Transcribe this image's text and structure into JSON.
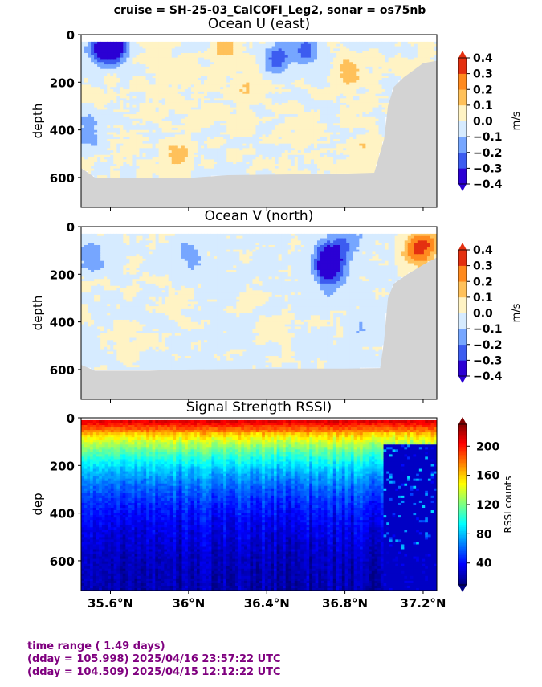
{
  "figure_title": "cruise = SH-25-03_CalCOFI_Leg2,  sonar = os75nb",
  "footer": {
    "line1": "time range ( 1.49 days)",
    "line2": "(dday = 105.998) 2025/04/16 23:57:22 UTC",
    "line3": "(dday = 104.509) 2025/04/15 12:12:22 UTC"
  },
  "colors": {
    "bottom_mask": "#d3d3d3",
    "footer_text": "#7f007f"
  },
  "chart_data": [
    {
      "type": "heatmap",
      "title": "Ocean U (east)",
      "xlabel": "",
      "ylabel": "depth",
      "xlim": [
        35.45,
        37.27
      ],
      "ylim": [
        725,
        0
      ],
      "yticks": [
        0,
        200,
        400,
        600
      ],
      "xticks": [
        35.6,
        36.0,
        36.4,
        36.8,
        37.2
      ],
      "xtick_labels": [],
      "data_depth_range": [
        30,
        600
      ],
      "colorbar": {
        "label": "m/s",
        "levels": [
          -0.4,
          -0.3,
          -0.2,
          -0.1,
          0.0,
          0.1,
          0.2,
          0.3,
          0.4
        ],
        "tick_labels": [
          "−0.4",
          "−0.3",
          "−0.2",
          "−0.1",
          "0.0",
          "0.1",
          "0.2",
          "0.3",
          "0.4"
        ],
        "colors": [
          "#2b00d4",
          "#3c5cf0",
          "#76a6ff",
          "#d6ebff",
          "#fff3c4",
          "#ffc15a",
          "#ff8a1e",
          "#e43010"
        ],
        "extend": "both"
      },
      "bottom_depth": [
        [
          35.45,
          560
        ],
        [
          35.52,
          600
        ],
        [
          35.6,
          602
        ],
        [
          35.8,
          602
        ],
        [
          36.0,
          602
        ],
        [
          36.2,
          590
        ],
        [
          36.4,
          588
        ],
        [
          36.6,
          586
        ],
        [
          36.8,
          584
        ],
        [
          36.95,
          580
        ],
        [
          37.0,
          440
        ],
        [
          37.02,
          300
        ],
        [
          37.05,
          220
        ],
        [
          37.1,
          180
        ],
        [
          37.15,
          150
        ],
        [
          37.2,
          120
        ],
        [
          37.27,
          110
        ]
      ],
      "features": [
        {
          "x": 35.62,
          "y": 45,
          "value": -0.45
        },
        {
          "x": 35.55,
          "y": 60,
          "value": -0.3
        },
        {
          "x": 36.45,
          "y": 110,
          "value": -0.25
        },
        {
          "x": 36.6,
          "y": 60,
          "value": -0.22
        },
        {
          "x": 36.82,
          "y": 150,
          "value": 0.15
        },
        {
          "x": 35.95,
          "y": 500,
          "value": 0.15
        },
        {
          "x": 36.2,
          "y": 40,
          "value": 0.15
        },
        {
          "x": 36.3,
          "y": 230,
          "value": 0.1
        },
        {
          "x": 36.0,
          "y": 150,
          "value": 0.05
        },
        {
          "x": 35.5,
          "y": 400,
          "value": -0.15
        },
        {
          "x": 36.6,
          "y": 400,
          "value": 0.05
        },
        {
          "x": 36.9,
          "y": 500,
          "value": 0.08
        }
      ]
    },
    {
      "type": "heatmap",
      "title": "Ocean V (north)",
      "xlabel": "",
      "ylabel": "depth",
      "xlim": [
        35.45,
        37.27
      ],
      "ylim": [
        725,
        0
      ],
      "yticks": [
        0,
        200,
        400,
        600
      ],
      "xticks": [
        35.6,
        36.0,
        36.4,
        36.8,
        37.2
      ],
      "xtick_labels": [],
      "data_depth_range": [
        30,
        600
      ],
      "colorbar": {
        "label": "m/s",
        "levels": [
          -0.4,
          -0.3,
          -0.2,
          -0.1,
          0.0,
          0.1,
          0.2,
          0.3,
          0.4
        ],
        "tick_labels": [
          "−0.4",
          "−0.3",
          "−0.2",
          "−0.1",
          "0.0",
          "0.1",
          "0.2",
          "0.3",
          "0.4"
        ],
        "colors": [
          "#2b00d4",
          "#3c5cf0",
          "#76a6ff",
          "#d6ebff",
          "#fff3c4",
          "#ffc15a",
          "#ff8a1e",
          "#e43010"
        ],
        "extend": "both"
      },
      "bottom_depth": [
        [
          35.45,
          580
        ],
        [
          35.52,
          605
        ],
        [
          35.6,
          605
        ],
        [
          35.8,
          605
        ],
        [
          36.0,
          600
        ],
        [
          36.2,
          598
        ],
        [
          36.4,
          596
        ],
        [
          36.6,
          596
        ],
        [
          36.8,
          596
        ],
        [
          36.98,
          594
        ],
        [
          37.0,
          480
        ],
        [
          37.02,
          300
        ],
        [
          37.05,
          240
        ],
        [
          37.12,
          200
        ],
        [
          37.2,
          160
        ],
        [
          37.27,
          130
        ]
      ],
      "features": [
        {
          "x": 36.72,
          "y": 140,
          "value": -0.38
        },
        {
          "x": 36.72,
          "y": 200,
          "value": -0.25
        },
        {
          "x": 36.8,
          "y": 60,
          "value": -0.2
        },
        {
          "x": 37.15,
          "y": 100,
          "value": 0.2
        },
        {
          "x": 37.22,
          "y": 80,
          "value": 0.25
        },
        {
          "x": 35.5,
          "y": 120,
          "value": -0.15
        },
        {
          "x": 35.9,
          "y": 350,
          "value": 0.05
        },
        {
          "x": 36.3,
          "y": 300,
          "value": 0.05
        },
        {
          "x": 36.0,
          "y": 100,
          "value": -0.12
        },
        {
          "x": 36.5,
          "y": 450,
          "value": 0.05
        },
        {
          "x": 35.7,
          "y": 500,
          "value": 0.05
        },
        {
          "x": 36.9,
          "y": 400,
          "value": -0.08
        }
      ]
    },
    {
      "type": "heatmap",
      "title": "Signal Strength RSSI)",
      "xlabel": "",
      "ylabel": "dep",
      "xlim": [
        35.45,
        37.27
      ],
      "ylim": [
        725,
        0
      ],
      "yticks": [
        0,
        200,
        400,
        600
      ],
      "xticks": [
        35.6,
        36.0,
        36.4,
        36.8,
        37.2
      ],
      "xtick_labels": [
        "35.6°N",
        "36°N",
        "36.4°N",
        "36.8°N",
        "37.2°N"
      ],
      "data_depth_range": [
        10,
        725
      ],
      "colorbar": {
        "label": "RSSI counts",
        "range": [
          10,
          230
        ],
        "ticks": [
          40,
          80,
          120,
          160,
          200
        ],
        "tick_labels": [
          "40",
          "80",
          "120",
          "160",
          "200"
        ],
        "colormap": "jet",
        "extend": "both"
      },
      "profile_surface": 220,
      "profile_decay_depth": 190,
      "nearshore_start_lat": 37.0,
      "nearshore_low_value": 25
    }
  ]
}
